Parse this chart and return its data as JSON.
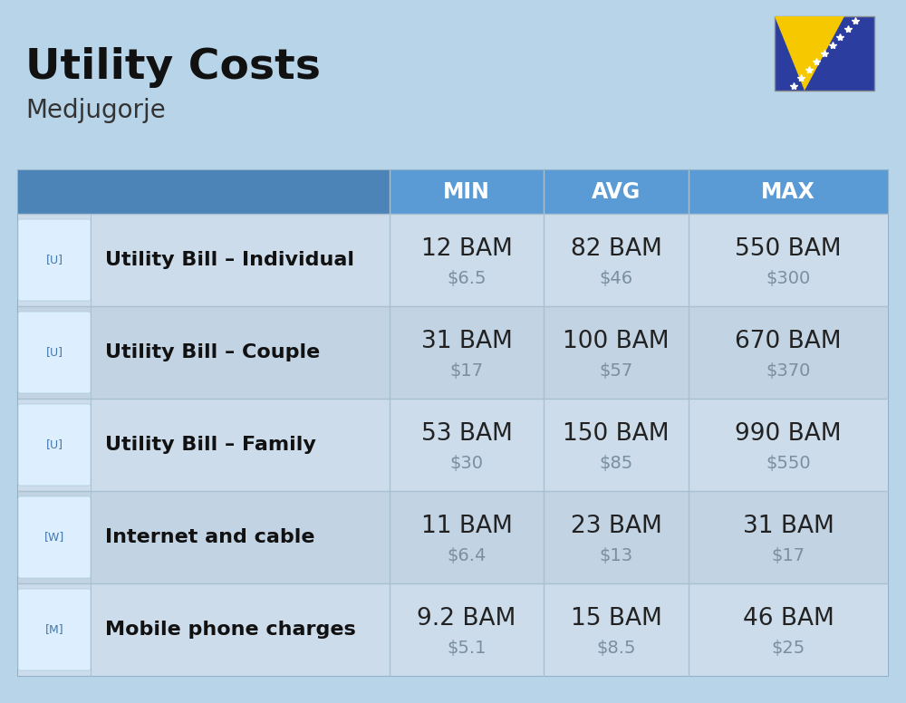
{
  "title": "Utility Costs",
  "subtitle": "Medjugorje",
  "background_color": "#b8d4e8",
  "header_bg_color": "#5b9bd5",
  "header_text_color": "#ffffff",
  "row_bg_color_odd": "#ccdded",
  "row_bg_color_even": "#bdd0e2",
  "label_color": "#111111",
  "value_color": "#222222",
  "subvalue_color": "#7a8fa0",
  "divider_color": "#a8c0d0",
  "columns": [
    "MIN",
    "AVG",
    "MAX"
  ],
  "rows": [
    {
      "label": "Utility Bill – Individual",
      "min_bam": "12 BAM",
      "min_usd": "$6.5",
      "avg_bam": "82 BAM",
      "avg_usd": "$46",
      "max_bam": "550 BAM",
      "max_usd": "$300"
    },
    {
      "label": "Utility Bill – Couple",
      "min_bam": "31 BAM",
      "min_usd": "$17",
      "avg_bam": "100 BAM",
      "avg_usd": "$57",
      "max_bam": "670 BAM",
      "max_usd": "$370"
    },
    {
      "label": "Utility Bill – Family",
      "min_bam": "53 BAM",
      "min_usd": "$30",
      "avg_bam": "150 BAM",
      "avg_usd": "$85",
      "max_bam": "990 BAM",
      "max_usd": "$550"
    },
    {
      "label": "Internet and cable",
      "min_bam": "11 BAM",
      "min_usd": "$6.4",
      "avg_bam": "23 BAM",
      "avg_usd": "$13",
      "max_bam": "31 BAM",
      "max_usd": "$17"
    },
    {
      "label": "Mobile phone charges",
      "min_bam": "9.2 BAM",
      "min_usd": "$5.1",
      "avg_bam": "15 BAM",
      "avg_usd": "$8.5",
      "max_bam": "46 BAM",
      "max_usd": "$25"
    }
  ],
  "title_fontsize": 34,
  "subtitle_fontsize": 20,
  "header_fontsize": 17,
  "label_fontsize": 16,
  "value_fontsize": 19,
  "subvalue_fontsize": 14,
  "flag_blue": "#2b3ea0",
  "flag_yellow": "#f5c800"
}
